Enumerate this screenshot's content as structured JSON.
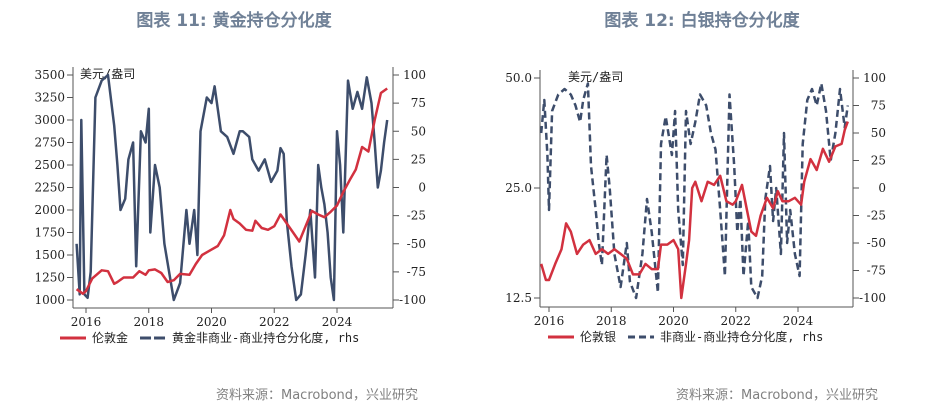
{
  "chart_data": [
    {
      "type": "line",
      "title": "图表 11: 黄金持仓分化度",
      "unit_label": "美元/盎司",
      "x_ticks": [
        "2016",
        "2018",
        "2020",
        "2022",
        "2024"
      ],
      "xlim": [
        2015.65,
        2025.75
      ],
      "y_left": {
        "ticks": [
          1000,
          1250,
          1500,
          1750,
          2000,
          2250,
          2500,
          2750,
          3000,
          3250,
          3500
        ],
        "lim": [
          1000,
          3500
        ],
        "scale": "linear"
      },
      "y_right": {
        "ticks": [
          -100,
          -75,
          -50,
          -25,
          0,
          25,
          50,
          75,
          100
        ],
        "lim": [
          -100,
          100
        ]
      },
      "grid": false,
      "legend_position": "bottom",
      "series": [
        {
          "name": "伦敦金",
          "axis": "left",
          "color": "#d2313f",
          "style": "solid",
          "x": [
            2015.7,
            2015.9,
            2016.0,
            2016.2,
            2016.5,
            2016.7,
            2016.9,
            2017.0,
            2017.2,
            2017.5,
            2017.7,
            2017.9,
            2018.0,
            2018.2,
            2018.4,
            2018.6,
            2018.8,
            2019.0,
            2019.3,
            2019.5,
            2019.7,
            2020.0,
            2020.2,
            2020.4,
            2020.6,
            2020.7,
            2020.9,
            2021.1,
            2021.3,
            2021.4,
            2021.6,
            2021.8,
            2022.0,
            2022.2,
            2022.4,
            2022.6,
            2022.8,
            2023.0,
            2023.2,
            2023.4,
            2023.6,
            2023.8,
            2024.0,
            2024.2,
            2024.4,
            2024.6,
            2024.8,
            2025.0,
            2025.2,
            2025.4,
            2025.6
          ],
          "y": [
            1120,
            1070,
            1100,
            1240,
            1330,
            1320,
            1180,
            1200,
            1250,
            1250,
            1320,
            1280,
            1330,
            1340,
            1300,
            1200,
            1220,
            1290,
            1280,
            1400,
            1500,
            1560,
            1600,
            1720,
            2000,
            1900,
            1850,
            1780,
            1770,
            1880,
            1800,
            1780,
            1820,
            1950,
            1850,
            1750,
            1650,
            1820,
            1990,
            1950,
            1920,
            1980,
            2050,
            2200,
            2330,
            2450,
            2700,
            2650,
            3000,
            3300,
            3350
          ]
        },
        {
          "name": "黄金非商业-商业持仓分化度, rhs",
          "axis": "right",
          "color": "#3d4d6b",
          "style": "solid",
          "x": [
            2015.7,
            2015.8,
            2015.85,
            2015.95,
            2016.05,
            2016.15,
            2016.3,
            2016.5,
            2016.7,
            2016.9,
            2017.0,
            2017.1,
            2017.25,
            2017.35,
            2017.5,
            2017.6,
            2017.75,
            2017.9,
            2018.0,
            2018.05,
            2018.2,
            2018.35,
            2018.5,
            2018.65,
            2018.8,
            2019.0,
            2019.2,
            2019.3,
            2019.45,
            2019.55,
            2019.65,
            2019.85,
            2020.0,
            2020.1,
            2020.3,
            2020.5,
            2020.7,
            2020.9,
            2021.0,
            2021.2,
            2021.3,
            2021.5,
            2021.7,
            2021.9,
            2022.1,
            2022.2,
            2022.3,
            2022.4,
            2022.55,
            2022.7,
            2022.85,
            2023.0,
            2023.15,
            2023.3,
            2023.4,
            2023.5,
            2023.6,
            2023.7,
            2023.8,
            2023.9,
            2024.0,
            2024.1,
            2024.2,
            2024.35,
            2024.5,
            2024.65,
            2024.8,
            2024.95,
            2025.1,
            2025.2,
            2025.3,
            2025.4,
            2025.5,
            2025.6
          ],
          "y": [
            -50,
            -95,
            60,
            -95,
            -98,
            -75,
            80,
            95,
            100,
            55,
            20,
            -20,
            -10,
            25,
            40,
            -70,
            50,
            40,
            70,
            -40,
            20,
            0,
            -50,
            -75,
            -100,
            -85,
            -20,
            -50,
            -20,
            -60,
            50,
            80,
            75,
            90,
            50,
            45,
            30,
            50,
            50,
            45,
            25,
            15,
            25,
            5,
            15,
            35,
            30,
            -30,
            -70,
            -100,
            -95,
            -60,
            -20,
            -80,
            20,
            0,
            -15,
            -40,
            -80,
            -100,
            50,
            20,
            -40,
            95,
            70,
            85,
            70,
            98,
            75,
            40,
            0,
            15,
            40,
            60
          ]
        }
      ],
      "legend": [
        "伦敦金",
        "黄金非商业-商业持仓分化度, rhs"
      ]
    },
    {
      "type": "line",
      "title": "图表 12: 白银持仓分化度",
      "unit_label": "美元/盎司",
      "x_ticks": [
        "2016",
        "2018",
        "2020",
        "2022",
        "2024"
      ],
      "xlim": [
        2015.7,
        2025.8
      ],
      "y_left": {
        "ticks": [
          12.5,
          25.0,
          50.0
        ],
        "tick_labels": [
          "12.5",
          "25.0",
          "50.0"
        ],
        "lim": [
          12.5,
          50
        ],
        "scale": "log"
      },
      "y_right": {
        "ticks": [
          -100,
          -75,
          -50,
          -25,
          0,
          25,
          50,
          75,
          100
        ],
        "lim": [
          -100,
          100
        ]
      },
      "grid": false,
      "legend_position": "bottom",
      "series": [
        {
          "name": "伦敦银",
          "axis": "left",
          "color": "#d2313f",
          "style": "solid",
          "x": [
            2015.75,
            2015.9,
            2016.0,
            2016.2,
            2016.4,
            2016.55,
            2016.7,
            2016.9,
            2017.1,
            2017.3,
            2017.5,
            2017.7,
            2017.9,
            2018.1,
            2018.3,
            2018.5,
            2018.7,
            2018.9,
            2019.1,
            2019.3,
            2019.5,
            2019.6,
            2019.8,
            2020.0,
            2020.15,
            2020.25,
            2020.4,
            2020.5,
            2020.6,
            2020.7,
            2020.9,
            2021.1,
            2021.3,
            2021.5,
            2021.7,
            2021.9,
            2022.0,
            2022.2,
            2022.35,
            2022.5,
            2022.65,
            2022.8,
            2023.0,
            2023.2,
            2023.35,
            2023.5,
            2023.7,
            2023.9,
            2024.1,
            2024.2,
            2024.4,
            2024.5,
            2024.6,
            2024.8,
            2025.0,
            2025.2,
            2025.4,
            2025.5,
            2025.6
          ],
          "y": [
            15.5,
            14,
            14,
            15.5,
            17,
            20,
            19,
            16.5,
            17.5,
            18,
            16.5,
            17,
            16.5,
            17,
            16.5,
            16,
            14.5,
            14.5,
            15.5,
            15,
            15,
            17.5,
            17.5,
            18,
            17,
            12.5,
            15.5,
            18,
            25,
            26,
            23,
            26,
            25.5,
            27,
            23,
            22.5,
            23,
            25.5,
            22,
            19,
            18.5,
            21,
            23.5,
            22,
            24.5,
            23,
            23,
            23.5,
            22.5,
            26,
            30,
            29,
            28,
            32,
            29.5,
            32.5,
            33,
            36,
            38
          ]
        },
        {
          "name": "非商业-商业持仓分化度, rhs",
          "axis": "right",
          "color": "#3d4d6b",
          "style": "dashed",
          "x": [
            2015.75,
            2015.85,
            2015.95,
            2016.0,
            2016.1,
            2016.3,
            2016.5,
            2016.7,
            2016.85,
            2017.0,
            2017.1,
            2017.25,
            2017.35,
            2017.5,
            2017.6,
            2017.7,
            2017.85,
            2017.95,
            2018.1,
            2018.3,
            2018.5,
            2018.6,
            2018.8,
            2019.0,
            2019.15,
            2019.3,
            2019.5,
            2019.6,
            2019.75,
            2019.95,
            2020.05,
            2020.15,
            2020.3,
            2020.4,
            2020.55,
            2020.7,
            2020.85,
            2021.05,
            2021.2,
            2021.35,
            2021.5,
            2021.65,
            2021.8,
            2021.95,
            2022.05,
            2022.15,
            2022.25,
            2022.4,
            2022.5,
            2022.7,
            2022.85,
            2022.95,
            2023.1,
            2023.2,
            2023.3,
            2023.45,
            2023.55,
            2023.65,
            2023.75,
            2023.9,
            2024.05,
            2024.15,
            2024.3,
            2024.45,
            2024.6,
            2024.75,
            2024.9,
            2025.05,
            2025.2,
            2025.35,
            2025.5,
            2025.6
          ],
          "y": [
            50,
            80,
            30,
            -20,
            70,
            85,
            90,
            85,
            75,
            60,
            80,
            95,
            20,
            -20,
            -50,
            -70,
            30,
            0,
            -60,
            -90,
            -50,
            -85,
            -100,
            -60,
            -10,
            -40,
            -95,
            40,
            65,
            30,
            70,
            -20,
            -70,
            70,
            40,
            60,
            85,
            75,
            50,
            35,
            -20,
            -80,
            85,
            20,
            -40,
            -10,
            -80,
            -30,
            -90,
            -100,
            -80,
            -10,
            20,
            -30,
            0,
            -60,
            50,
            -50,
            -20,
            -60,
            -80,
            40,
            80,
            90,
            75,
            95,
            70,
            25,
            50,
            90,
            55,
            75
          ]
        }
      ],
      "legend": [
        "伦敦银",
        "非商业-商业持仓分化度, rhs"
      ]
    }
  ],
  "source_left": "资料来源：Macrobond，兴业研究",
  "source_right": "资料来源：Macrobond，兴业研究"
}
